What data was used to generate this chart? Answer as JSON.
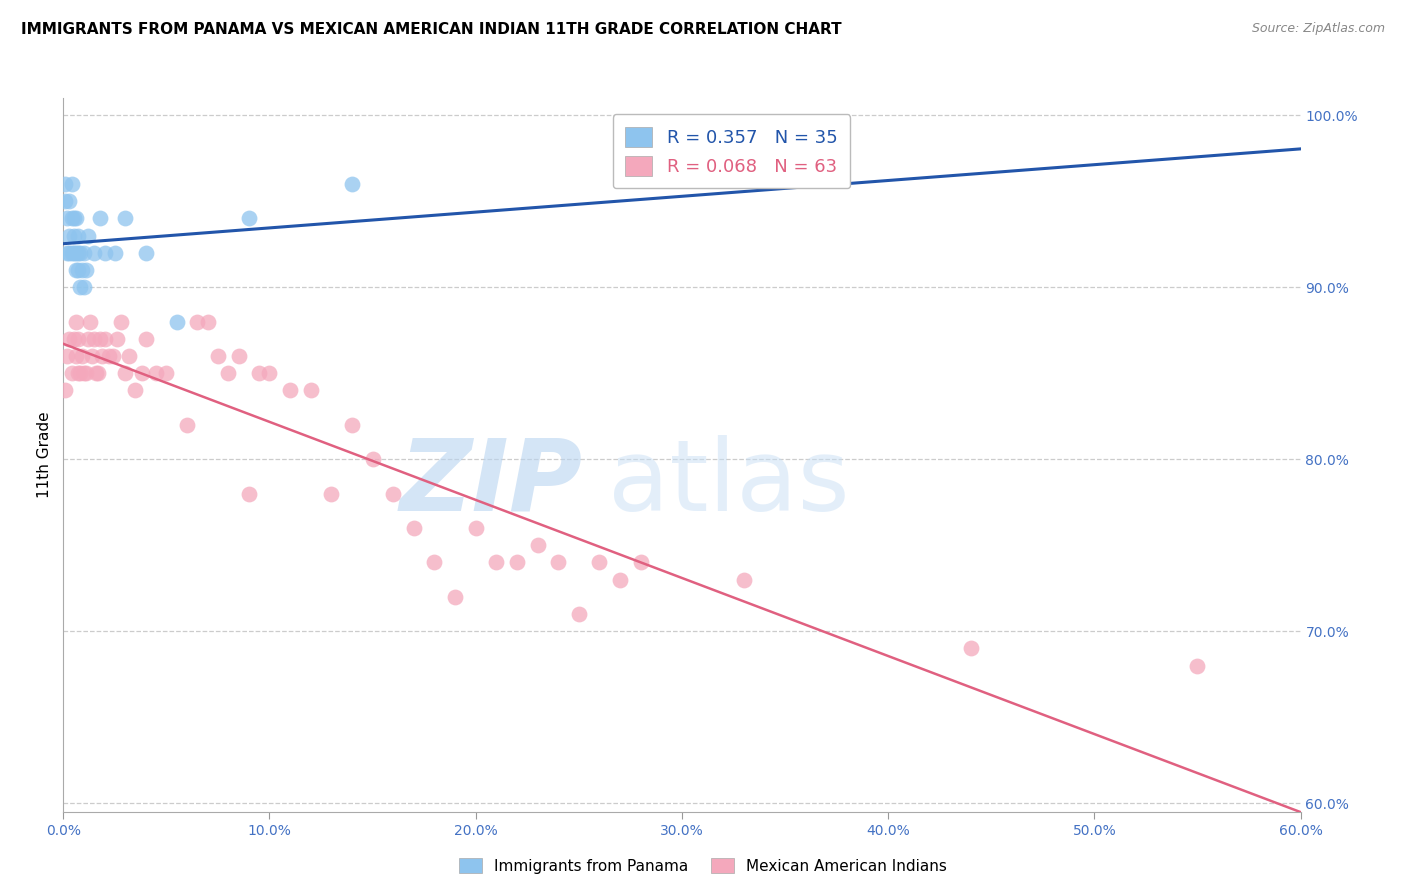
{
  "title": "IMMIGRANTS FROM PANAMA VS MEXICAN AMERICAN INDIAN 11TH GRADE CORRELATION CHART",
  "source": "Source: ZipAtlas.com",
  "ylabel": "11th Grade",
  "xlim": [
    0.0,
    0.6
  ],
  "ylim": [
    0.595,
    1.01
  ],
  "xticks": [
    0.0,
    0.1,
    0.2,
    0.3,
    0.4,
    0.5,
    0.6
  ],
  "xticklabels": [
    "0.0%",
    "10.0%",
    "20.0%",
    "30.0%",
    "40.0%",
    "50.0%",
    "60.0%"
  ],
  "yticks": [
    0.6,
    0.7,
    0.8,
    0.9,
    1.0
  ],
  "yticklabels": [
    "60.0%",
    "70.0%",
    "80.0%",
    "90.0%",
    "100.0%"
  ],
  "blue_R": 0.357,
  "blue_N": 35,
  "pink_R": 0.068,
  "pink_N": 63,
  "blue_label": "Immigrants from Panama",
  "pink_label": "Mexican American Indians",
  "blue_color": "#8EC4EE",
  "pink_color": "#F4A8BC",
  "blue_line_color": "#2255AA",
  "pink_line_color": "#E06080",
  "axis_label_color": "#4472C4",
  "title_fontsize": 11,
  "source_fontsize": 9,
  "blue_x": [
    0.001,
    0.001,
    0.002,
    0.002,
    0.003,
    0.003,
    0.003,
    0.004,
    0.004,
    0.004,
    0.005,
    0.005,
    0.005,
    0.006,
    0.006,
    0.006,
    0.007,
    0.007,
    0.007,
    0.008,
    0.008,
    0.009,
    0.01,
    0.01,
    0.011,
    0.012,
    0.015,
    0.018,
    0.02,
    0.025,
    0.03,
    0.04,
    0.055,
    0.09,
    0.14
  ],
  "blue_y": [
    0.95,
    0.96,
    0.92,
    0.94,
    0.92,
    0.93,
    0.95,
    0.92,
    0.94,
    0.96,
    0.92,
    0.93,
    0.94,
    0.91,
    0.92,
    0.94,
    0.91,
    0.92,
    0.93,
    0.9,
    0.92,
    0.91,
    0.9,
    0.92,
    0.91,
    0.93,
    0.92,
    0.94,
    0.92,
    0.92,
    0.94,
    0.92,
    0.88,
    0.94,
    0.96
  ],
  "pink_x": [
    0.001,
    0.002,
    0.003,
    0.004,
    0.005,
    0.006,
    0.006,
    0.007,
    0.007,
    0.008,
    0.009,
    0.01,
    0.011,
    0.012,
    0.013,
    0.014,
    0.015,
    0.016,
    0.017,
    0.018,
    0.019,
    0.02,
    0.022,
    0.024,
    0.026,
    0.028,
    0.03,
    0.032,
    0.035,
    0.038,
    0.04,
    0.045,
    0.05,
    0.06,
    0.065,
    0.07,
    0.075,
    0.08,
    0.085,
    0.09,
    0.095,
    0.1,
    0.11,
    0.12,
    0.13,
    0.14,
    0.15,
    0.16,
    0.17,
    0.18,
    0.19,
    0.2,
    0.21,
    0.22,
    0.23,
    0.24,
    0.25,
    0.26,
    0.27,
    0.28,
    0.33,
    0.44,
    0.55
  ],
  "pink_y": [
    0.84,
    0.86,
    0.87,
    0.85,
    0.87,
    0.86,
    0.88,
    0.85,
    0.87,
    0.85,
    0.86,
    0.85,
    0.85,
    0.87,
    0.88,
    0.86,
    0.87,
    0.85,
    0.85,
    0.87,
    0.86,
    0.87,
    0.86,
    0.86,
    0.87,
    0.88,
    0.85,
    0.86,
    0.84,
    0.85,
    0.87,
    0.85,
    0.85,
    0.82,
    0.88,
    0.88,
    0.86,
    0.85,
    0.86,
    0.78,
    0.85,
    0.85,
    0.84,
    0.84,
    0.78,
    0.82,
    0.8,
    0.78,
    0.76,
    0.74,
    0.72,
    0.76,
    0.74,
    0.74,
    0.75,
    0.74,
    0.71,
    0.74,
    0.73,
    0.74,
    0.73,
    0.69,
    0.68
  ]
}
